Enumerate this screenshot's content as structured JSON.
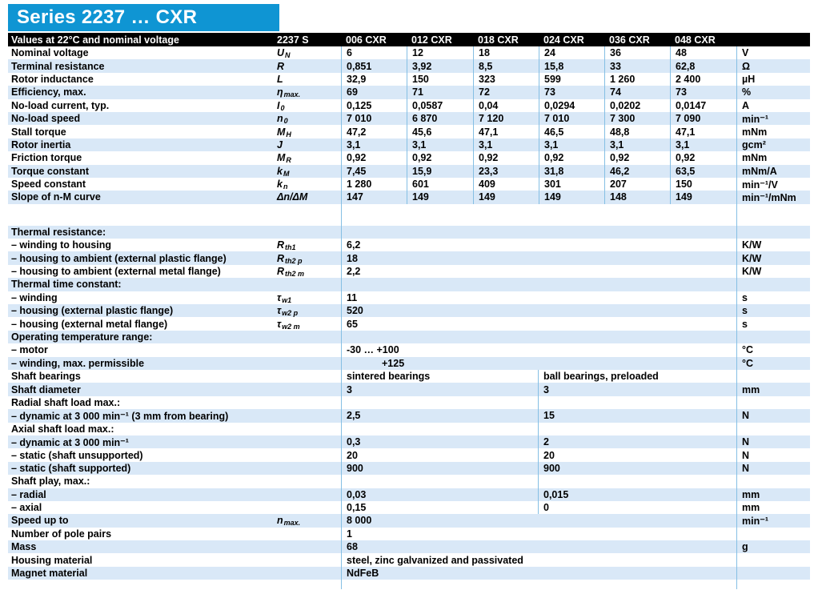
{
  "title": "Series 2237 … CXR",
  "colors": {
    "banner_blue": "#0f95d3",
    "row_shade_blue": "#d9e8f7",
    "grid_line_blue": "#85bfe4",
    "header_bar_black": "#000000",
    "text_black": "#000000",
    "header_text_white": "#ffffff"
  },
  "header": {
    "caption": "Values at 22°C and nominal voltage",
    "series_label": "2237 S",
    "columns": [
      "006 CXR",
      "012 CXR",
      "018 CXR",
      "024 CXR",
      "036 CXR",
      "048 CXR"
    ]
  },
  "main_rows": [
    {
      "label": "Nominal voltage",
      "symbol": {
        "base": "U",
        "sub": "N"
      },
      "values": [
        "6",
        "12",
        "18",
        "24",
        "36",
        "48"
      ],
      "unit": "V",
      "shaded": false
    },
    {
      "label": "Terminal resistance",
      "symbol": {
        "base": "R",
        "sub": ""
      },
      "values": [
        "0,851",
        "3,92",
        "8,5",
        "15,8",
        "33",
        "62,8"
      ],
      "unit": "Ω",
      "shaded": true
    },
    {
      "label": "Rotor inductance",
      "symbol": {
        "base": "L",
        "sub": ""
      },
      "values": [
        "32,9",
        "150",
        "323",
        "599",
        "1 260",
        "2 400"
      ],
      "unit": "µH",
      "shaded": false
    },
    {
      "label": "Efficiency, max.",
      "symbol": {
        "base": "η",
        "sub": "max."
      },
      "values": [
        "69",
        "71",
        "72",
        "73",
        "74",
        "73"
      ],
      "unit": "%",
      "shaded": true
    },
    {
      "label": "No-load current, typ.",
      "symbol": {
        "base": "I",
        "sub": "0"
      },
      "values": [
        "0,125",
        "0,0587",
        "0,04",
        "0,0294",
        "0,0202",
        "0,0147"
      ],
      "unit": "A",
      "shaded": false
    },
    {
      "label": "No-load speed",
      "symbol": {
        "base": "n",
        "sub": "0"
      },
      "values": [
        "7 010",
        "6 870",
        "7 120",
        "7 010",
        "7 300",
        "7 090"
      ],
      "unit": "min⁻¹",
      "shaded": true
    },
    {
      "label": "Stall torque",
      "symbol": {
        "base": "M",
        "sub": "H"
      },
      "values": [
        "47,2",
        "45,6",
        "47,1",
        "46,5",
        "48,8",
        "47,1"
      ],
      "unit": "mNm",
      "shaded": false
    },
    {
      "label": "Rotor inertia",
      "symbol": {
        "base": "J",
        "sub": ""
      },
      "values": [
        "3,1",
        "3,1",
        "3,1",
        "3,1",
        "3,1",
        "3,1"
      ],
      "unit": "gcm²",
      "shaded": true
    },
    {
      "label": "Friction torque",
      "symbol": {
        "base": "M",
        "sub": "R"
      },
      "values": [
        "0,92",
        "0,92",
        "0,92",
        "0,92",
        "0,92",
        "0,92"
      ],
      "unit": "mNm",
      "shaded": false
    },
    {
      "label": "Torque constant",
      "symbol": {
        "base": "k",
        "sub": "M"
      },
      "values": [
        "7,45",
        "15,9",
        "23,3",
        "31,8",
        "46,2",
        "63,5"
      ],
      "unit": "mNm/A",
      "shaded": true
    },
    {
      "label": "Speed constant",
      "symbol": {
        "base": "k",
        "sub": "n"
      },
      "values": [
        "1 280",
        "601",
        "409",
        "301",
        "207",
        "150"
      ],
      "unit": "min⁻¹/V",
      "shaded": false
    },
    {
      "label": "Slope of n-M curve",
      "symbol": {
        "base": "Δn/ΔM",
        "sub": ""
      },
      "values": [
        "147",
        "149",
        "149",
        "149",
        "148",
        "149"
      ],
      "unit": "min⁻¹/mNm",
      "shaded": true
    }
  ],
  "spec_rows": [
    {
      "label": "Thermal resistance:",
      "values": [],
      "unit": "",
      "shaded": true,
      "divided": false
    },
    {
      "label": "– winding to housing",
      "symbol": {
        "base": "R",
        "sub": "th1"
      },
      "values": [
        "6,2"
      ],
      "unit": "K/W",
      "shaded": false,
      "divided": false
    },
    {
      "label": "– housing to ambient (external plastic flange)",
      "symbol": {
        "base": "R",
        "sub": "th2 p"
      },
      "values": [
        "18"
      ],
      "unit": "K/W",
      "shaded": true,
      "divided": false
    },
    {
      "label": "– housing to ambient (external metal flange)",
      "symbol": {
        "base": "R",
        "sub": "th2 m"
      },
      "values": [
        "2,2"
      ],
      "unit": "K/W",
      "shaded": false,
      "divided": false
    },
    {
      "label": "Thermal time constant:",
      "values": [],
      "unit": "",
      "shaded": true,
      "divided": false
    },
    {
      "label": "– winding",
      "symbol": {
        "base": "τ",
        "sub": "w1"
      },
      "values": [
        "11"
      ],
      "unit": "s",
      "shaded": false,
      "divided": false
    },
    {
      "label": "– housing (external plastic flange)",
      "symbol": {
        "base": "τ",
        "sub": "w2 p"
      },
      "values": [
        "520"
      ],
      "unit": "s",
      "shaded": true,
      "divided": false
    },
    {
      "label": "– housing (external metal flange)",
      "symbol": {
        "base": "τ",
        "sub": "w2 m"
      },
      "values": [
        "65"
      ],
      "unit": "s",
      "shaded": false,
      "divided": false
    },
    {
      "label": "Operating temperature range:",
      "values": [],
      "unit": "",
      "shaded": true,
      "divided": false
    },
    {
      "label": "– motor",
      "values": [
        "-30 … +100"
      ],
      "unit": "°C",
      "shaded": false,
      "divided": false
    },
    {
      "label": "– winding, max. permissible",
      "values": [
        "+125"
      ],
      "unit": "°C",
      "shaded": true,
      "divided": false,
      "value_indent": true
    },
    {
      "label": "Shaft bearings",
      "values": [
        "sintered bearings",
        "ball bearings, preloaded"
      ],
      "unit": "",
      "shaded": false,
      "divided": true
    },
    {
      "label": "Shaft diameter",
      "values": [
        "3",
        "3"
      ],
      "unit": "mm",
      "shaded": true,
      "divided": true
    },
    {
      "label": "Radial shaft load max.:",
      "values": [],
      "unit": "",
      "shaded": false,
      "divided": true
    },
    {
      "label": "– dynamic at 3 000 min⁻¹ (3 mm from bearing)",
      "values": [
        "2,5",
        "15"
      ],
      "unit": "N",
      "shaded": true,
      "divided": true
    },
    {
      "label": "Axial shaft load max.:",
      "values": [],
      "unit": "",
      "shaded": false,
      "divided": true
    },
    {
      "label": "– dynamic at 3 000 min⁻¹",
      "values": [
        "0,3",
        "2"
      ],
      "unit": "N",
      "shaded": true,
      "divided": true
    },
    {
      "label": "– static (shaft unsupported)",
      "values": [
        "20",
        "20"
      ],
      "unit": "N",
      "shaded": false,
      "divided": true
    },
    {
      "label": "– static (shaft supported)",
      "values": [
        "900",
        "900"
      ],
      "unit": "N",
      "shaded": true,
      "divided": true
    },
    {
      "label": "Shaft play, max.:",
      "values": [],
      "unit": "",
      "shaded": false,
      "divided": true
    },
    {
      "label": "– radial",
      "values": [
        "0,03",
        "0,015"
      ],
      "unit": "mm",
      "shaded": true,
      "divided": true
    },
    {
      "label": "– axial",
      "values": [
        "0,15",
        "0"
      ],
      "unit": "mm",
      "shaded": false,
      "divided": true
    },
    {
      "label": "Speed up to",
      "symbol": {
        "base": "n",
        "sub": "max."
      },
      "values": [
        "8 000"
      ],
      "unit": "min⁻¹",
      "shaded": true,
      "divided": false
    },
    {
      "label": "Number of pole pairs",
      "values": [
        "1"
      ],
      "unit": "",
      "shaded": false,
      "divided": false
    },
    {
      "label": "Mass",
      "values": [
        "68"
      ],
      "unit": "g",
      "shaded": true,
      "divided": false
    },
    {
      "label": "Housing material",
      "values": [
        "steel, zinc galvanized and passivated"
      ],
      "unit": "",
      "shaded": false,
      "divided": false
    },
    {
      "label": "Magnet material",
      "values": [
        "NdFeB"
      ],
      "unit": "",
      "shaded": true,
      "divided": false
    }
  ]
}
